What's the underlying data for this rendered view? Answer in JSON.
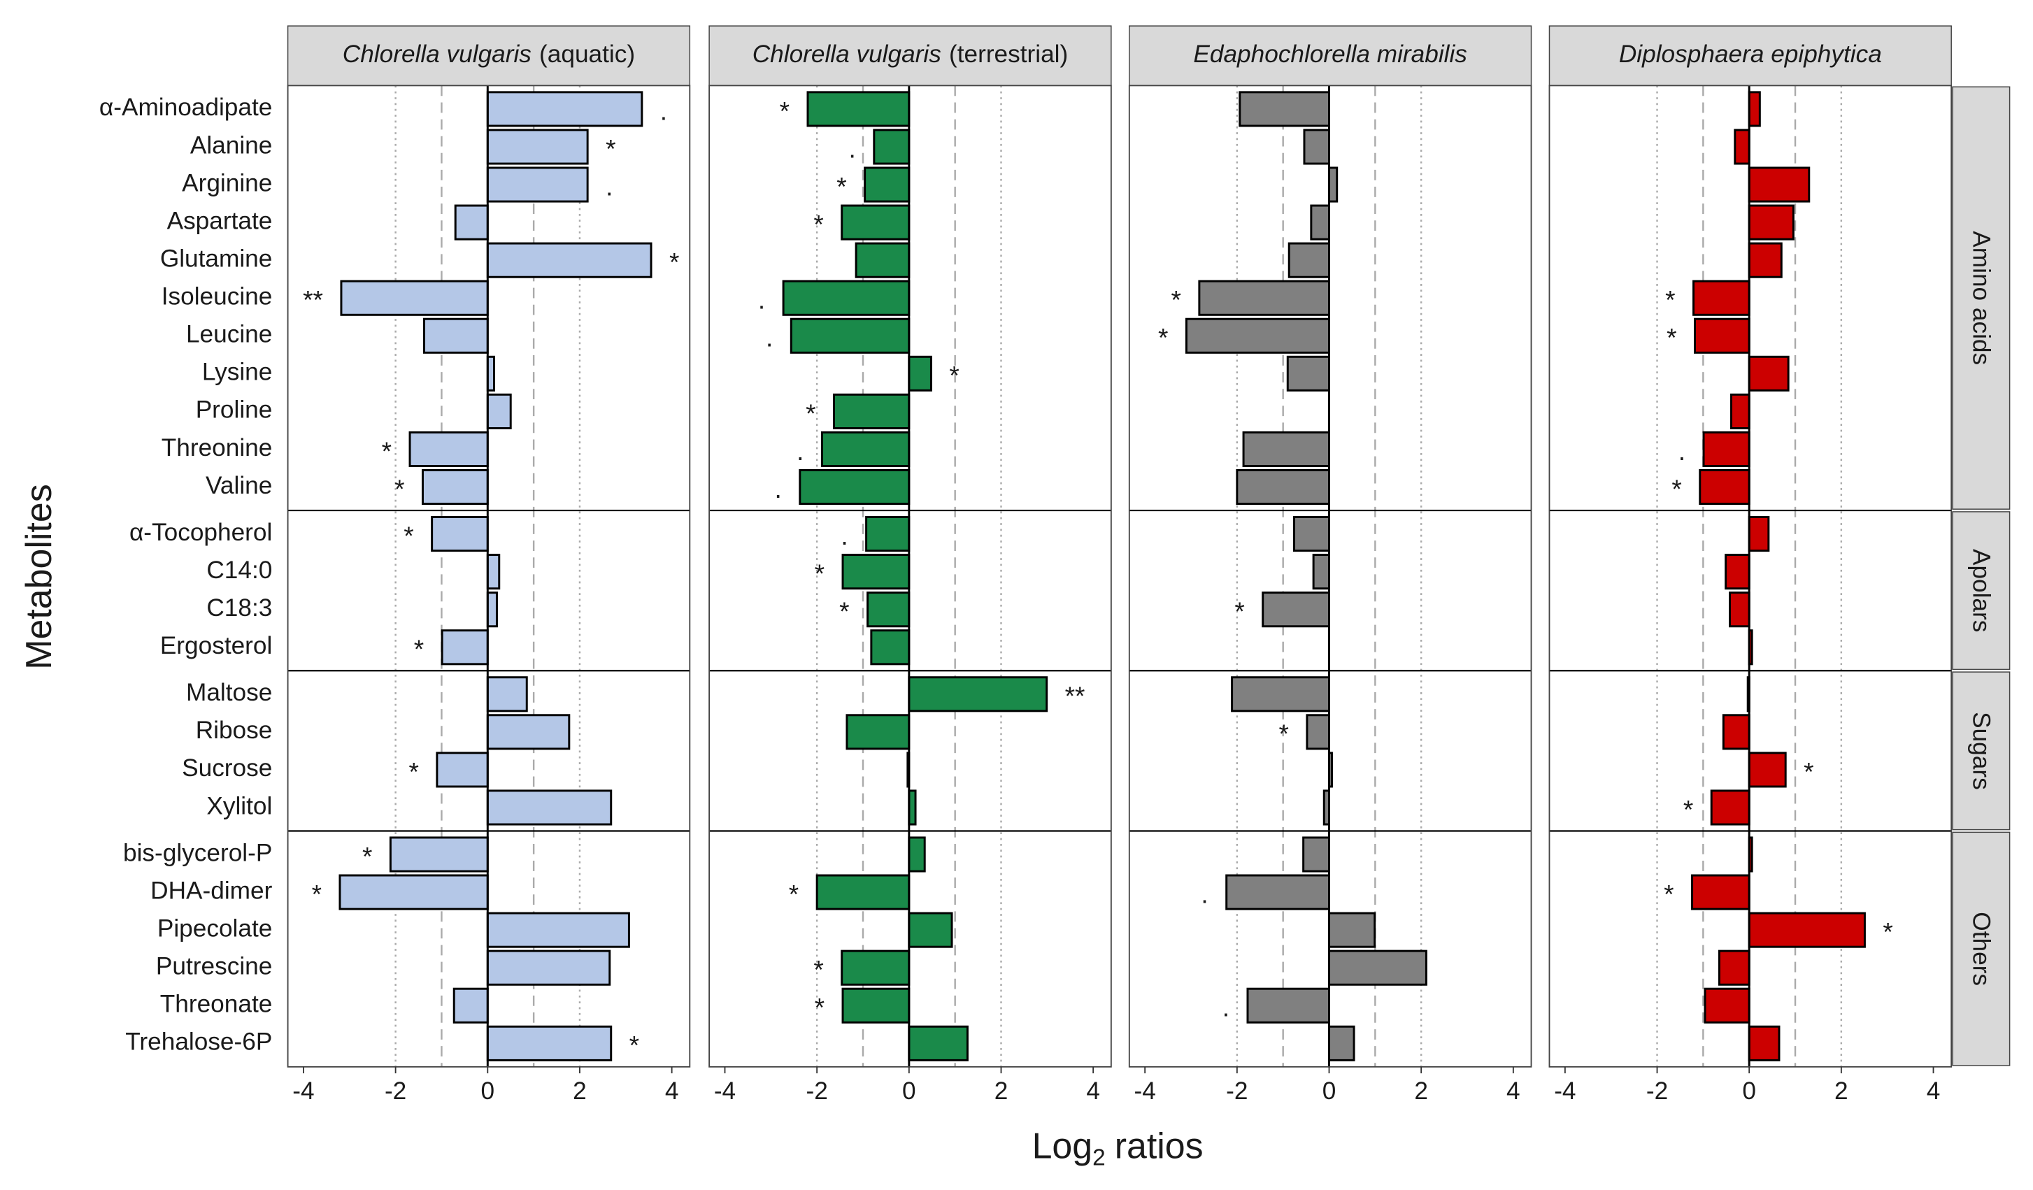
{
  "y_label": "Metabolites",
  "x_label": {
    "text": "Log",
    "subscript": "2",
    "rest": "ratios"
  },
  "row_groups": [
    {
      "name": "Amino acids",
      "categories": [
        "α-Aminoadipate",
        "Alanine",
        "Arginine",
        "Aspartate",
        "Glutamine",
        "Isoleucine",
        "Leucine",
        "Lysine",
        "Proline",
        "Threonine",
        "Valine"
      ]
    },
    {
      "name": "Apolars",
      "categories": [
        "α-Tocopherol",
        "C14:0",
        "C18:3",
        "Ergosterol"
      ]
    },
    {
      "name": "Sugars",
      "categories": [
        "Maltose",
        "Ribose",
        "Sucrose",
        "Xylitol"
      ]
    },
    {
      "name": "Others",
      "categories": [
        "bis-glycerol-P",
        "DHA-dimer",
        "Pipecolate",
        "Putrescine",
        "Threonate",
        "Trehalose-6P"
      ]
    }
  ],
  "chart_data": [
    {
      "type": "bar",
      "orientation": "horizontal",
      "title": "Chlorella vulgaris",
      "subtitle": "(aquatic)",
      "color": "#b4c7e7",
      "values": [
        3.35,
        2.17,
        2.17,
        -0.7,
        3.55,
        -3.18,
        -1.38,
        0.14,
        0.5,
        -1.69,
        -1.41,
        -1.21,
        0.25,
        0.2,
        -0.99,
        0.85,
        1.77,
        -1.1,
        2.68,
        -2.11,
        -3.21,
        3.07,
        2.65,
        -0.73,
        2.68
      ],
      "annotations": [
        ".",
        "*",
        ".",
        null,
        "*",
        "**",
        null,
        null,
        null,
        "*",
        "*",
        "*",
        null,
        null,
        "*",
        null,
        null,
        "*",
        null,
        "*",
        "*",
        null,
        null,
        null,
        "*"
      ],
      "xlim": [
        -4.34,
        4.39
      ],
      "xticks": [
        -4,
        -2,
        0,
        2,
        4
      ],
      "dashed_lines": [
        -1,
        1
      ],
      "dotted_lines": [
        -2,
        2
      ]
    },
    {
      "type": "bar",
      "orientation": "horizontal",
      "title": "Chlorella vulgaris",
      "subtitle": "(terrestrial)",
      "color": "#1a8a4a",
      "values": [
        -2.2,
        -0.76,
        -0.96,
        -1.46,
        -1.15,
        -2.73,
        -2.56,
        0.48,
        -1.63,
        -1.89,
        -2.37,
        -0.93,
        -1.44,
        -0.9,
        -0.82,
        2.99,
        -1.35,
        -0.03,
        0.14,
        0.34,
        -2.0,
        0.93,
        -1.46,
        -1.44,
        1.27
      ],
      "annotations": [
        "*",
        ".",
        "*",
        "*",
        null,
        ".",
        ".",
        "*",
        "*",
        ".",
        ".",
        ".",
        "*",
        "*",
        null,
        "**",
        null,
        null,
        null,
        null,
        "*",
        null,
        "*",
        "*",
        null
      ],
      "xlim": [
        -4.34,
        4.39
      ],
      "xticks": [
        -4,
        -2,
        0,
        2,
        4
      ],
      "dashed_lines": [
        -1,
        1
      ],
      "dotted_lines": [
        -2,
        2
      ]
    },
    {
      "type": "bar",
      "orientation": "horizontal",
      "title": "Edaphochlorella mirabilis",
      "color": "#808080",
      "values": [
        -1.94,
        -0.54,
        0.17,
        -0.39,
        -0.87,
        -2.82,
        -3.1,
        -0.9,
        0,
        -1.86,
        -2.0,
        -0.76,
        -0.34,
        -1.44,
        0,
        -2.11,
        -0.48,
        0.06,
        -0.11,
        -0.56,
        -2.23,
        0.99,
        2.11,
        -1.77,
        0.54
      ],
      "annotations": [
        null,
        null,
        null,
        null,
        null,
        "*",
        "*",
        null,
        null,
        null,
        null,
        null,
        null,
        "*",
        null,
        null,
        "*",
        null,
        null,
        null,
        ".",
        null,
        null,
        ".",
        null
      ],
      "xlim": [
        -4.34,
        4.39
      ],
      "xticks": [
        -4,
        -2,
        0,
        2,
        4
      ],
      "dashed_lines": [
        -1,
        1
      ],
      "dotted_lines": [
        -2,
        2
      ]
    },
    {
      "type": "bar",
      "orientation": "horizontal",
      "title": "Diplosphaera epiphytica",
      "color": "#cc0000",
      "values": [
        0.23,
        -0.31,
        1.3,
        0.96,
        0.7,
        -1.21,
        -1.18,
        0.85,
        -0.39,
        -0.99,
        -1.07,
        0.42,
        -0.51,
        -0.42,
        0.06,
        -0.03,
        -0.56,
        0.79,
        -0.82,
        0.06,
        -1.24,
        2.51,
        -0.65,
        -0.96,
        0.65
      ],
      "annotations": [
        null,
        null,
        null,
        null,
        null,
        "*",
        "*",
        null,
        null,
        ".",
        "*",
        null,
        null,
        null,
        null,
        null,
        null,
        "*",
        "*",
        null,
        "*",
        "*",
        null,
        null,
        null
      ],
      "xlim": [
        -4.34,
        4.39
      ],
      "xticks": [
        -4,
        -2,
        0,
        2,
        4
      ],
      "dashed_lines": [
        -1,
        1
      ],
      "dotted_lines": [
        -2,
        2
      ]
    }
  ]
}
